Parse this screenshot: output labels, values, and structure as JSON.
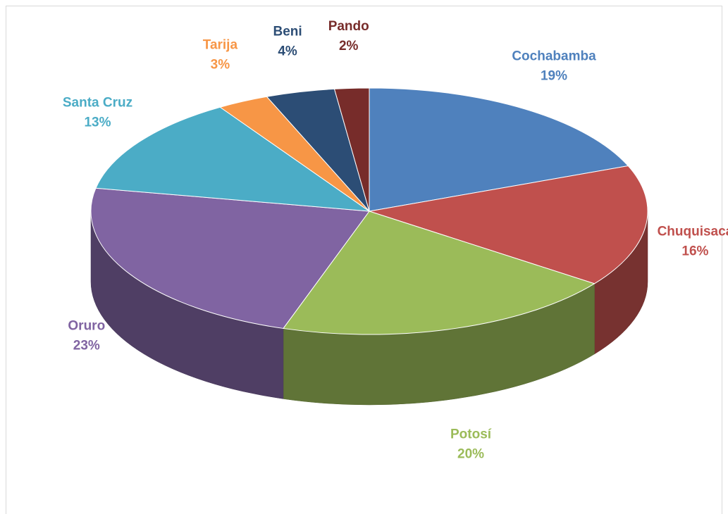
{
  "chart_data": {
    "type": "pie",
    "three_d": true,
    "categories": [
      "Cochabamba",
      "Chuquisaca",
      "Potosí",
      "Oruro",
      "Santa Cruz",
      "Tarija",
      "Beni",
      "Pando"
    ],
    "values": [
      19,
      16,
      20,
      23,
      13,
      3,
      4,
      2
    ],
    "value_labels": [
      "19%",
      "16%",
      "20%",
      "23%",
      "13%",
      "3%",
      "4%",
      "2%"
    ],
    "colors": [
      "#4f81bd",
      "#c0504d",
      "#9bbb59",
      "#8064a2",
      "#4bacc6",
      "#f79646",
      "#2c4d75",
      "#772c2a"
    ]
  }
}
